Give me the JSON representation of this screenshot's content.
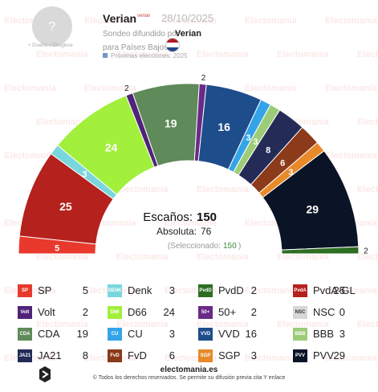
{
  "header": {
    "name": "Verian",
    "logo_text": "verian",
    "date": "28/10/2025",
    "line1": "Sondeo difundido por",
    "pollster": "Verian",
    "line2": "para Países Bajos",
    "next": "Próximas elecciones: 2025",
    "avatar_glyph": "?",
    "avatar_sub": "+ Diseño   + Desglose",
    "flag_colors": [
      "#ae1c28",
      "#ffffff",
      "#21468b"
    ]
  },
  "watermark": "Electomania",
  "chart_data": {
    "type": "parliament-hemicycle",
    "total_seats": 150,
    "majority": 76,
    "selected": 150,
    "order": [
      "SP",
      "PvdA-GL",
      "Denk",
      "D66",
      "Volt",
      "CDA",
      "50+",
      "NSC",
      "VVD",
      "CU",
      "BBB",
      "JA21",
      "FvD",
      "SGP",
      "PVV",
      "PvdD"
    ],
    "parties": {
      "SP": {
        "seats": 5,
        "color": "#e8392c"
      },
      "Volt": {
        "seats": 2,
        "color": "#502379"
      },
      "CDA": {
        "seats": 19,
        "color": "#5f8a5a"
      },
      "JA21": {
        "seats": 8,
        "color": "#242b57"
      },
      "Denk": {
        "seats": 3,
        "color": "#7ad6dd"
      },
      "D66": {
        "seats": 24,
        "color": "#a2ef3c"
      },
      "CU": {
        "seats": 3,
        "color": "#34a4e8"
      },
      "FvD": {
        "seats": 6,
        "color": "#8b3a1a"
      },
      "PvdD": {
        "seats": 2,
        "color": "#2d6e22"
      },
      "50+": {
        "seats": 2,
        "color": "#6a2a87"
      },
      "VVD": {
        "seats": 16,
        "color": "#1e4d8c"
      },
      "SGP": {
        "seats": 3,
        "color": "#e88a2a"
      },
      "PvdA-GL": {
        "seats": 25,
        "color": "#b5211d"
      },
      "NSC": {
        "seats": 0,
        "color": "#d7d7d7"
      },
      "BBB": {
        "seats": 3,
        "color": "#9ccc77"
      },
      "PVV": {
        "seats": 29,
        "color": "#0b1326"
      }
    }
  },
  "center": {
    "seats_label": "Escaños:",
    "seats_value": "150",
    "absolute_label": "Absoluta:",
    "absolute_value": "76",
    "selected_label": "(Seleccionado:",
    "selected_value": "150",
    "selected_close": ")"
  },
  "legend": [
    {
      "name": "SP",
      "seats": "5",
      "logo": "SP"
    },
    {
      "name": "Denk",
      "seats": "3",
      "logo": "DENK"
    },
    {
      "name": "PvdD",
      "seats": "2",
      "logo": "PvdD"
    },
    {
      "name": "PvdA-GL",
      "seats": "25",
      "logo": "PvdA"
    },
    {
      "name": "Volt",
      "seats": "2",
      "logo": "Volt"
    },
    {
      "name": "D66",
      "seats": "24",
      "logo": "D66"
    },
    {
      "name": "50+",
      "seats": "2",
      "logo": "50+"
    },
    {
      "name": "NSC",
      "seats": "0",
      "logo": "NSC"
    },
    {
      "name": "CDA",
      "seats": "19",
      "logo": "CDA"
    },
    {
      "name": "CU",
      "seats": "3",
      "logo": "CU"
    },
    {
      "name": "VVD",
      "seats": "16",
      "logo": "VVD"
    },
    {
      "name": "BBB",
      "seats": "3",
      "logo": "BBB"
    },
    {
      "name": "JA21",
      "seats": "8",
      "logo": "JA21"
    },
    {
      "name": "FvD",
      "seats": "6",
      "logo": "FvD"
    },
    {
      "name": "SGP",
      "seats": "3",
      "logo": "SGP"
    },
    {
      "name": "PVV",
      "seats": "29",
      "logo": "PVV"
    }
  ],
  "footer": {
    "site": "electomania.es",
    "copyright": "© Todos los derechos reservados. Se permite su difusión previa cita Y enlace"
  }
}
